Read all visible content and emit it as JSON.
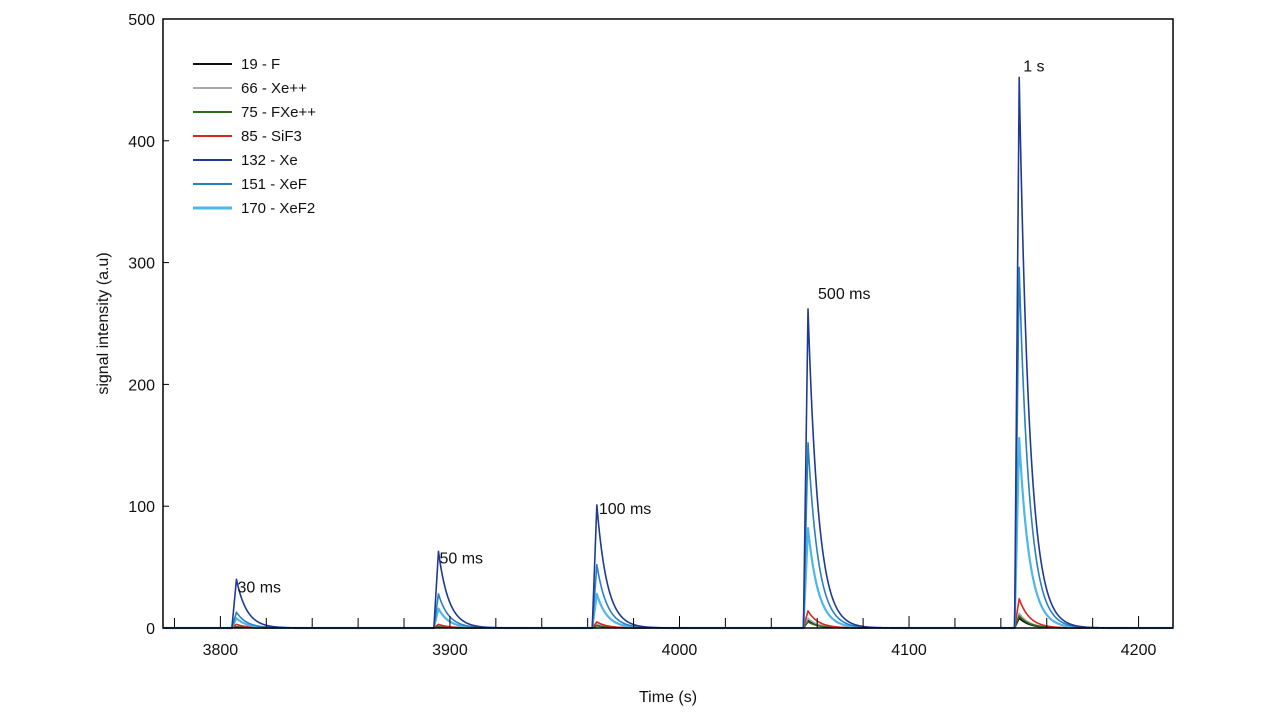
{
  "chart_data": {
    "type": "line",
    "title": "",
    "xlabel": "Time (s)",
    "ylabel": "signal intensity  (a.u)",
    "xlim": [
      3775,
      4215
    ],
    "ylim": [
      0,
      500
    ],
    "xticks": [
      3800,
      3900,
      4000,
      4100,
      4200
    ],
    "yticks": [
      0,
      100,
      200,
      300,
      400,
      500
    ],
    "grid": false,
    "legend_position": "top-left",
    "pulses": [
      {
        "start": 3805,
        "label": "30 ms"
      },
      {
        "start": 3893,
        "label": "50 ms"
      },
      {
        "start": 3962,
        "label": "100 ms"
      },
      {
        "start": 4054,
        "label": "500 ms"
      },
      {
        "start": 4146,
        "label": "1 s"
      }
    ],
    "series": [
      {
        "name": "19 - F",
        "color": "#111111",
        "peaks": [
          1,
          1,
          2,
          6,
          8
        ]
      },
      {
        "name": "66 - Xe++",
        "color": "#aaaaaa",
        "peaks": [
          1,
          2,
          3,
          8,
          12
        ]
      },
      {
        "name": "75 - FXe++",
        "color": "#2e6b1f",
        "peaks": [
          1,
          1,
          2,
          5,
          10
        ]
      },
      {
        "name": "85 - SiF3",
        "color": "#d42a1e",
        "peaks": [
          3,
          3,
          5,
          14,
          24
        ]
      },
      {
        "name": "132 - Xe",
        "color": "#1f3a93",
        "peaks": [
          40,
          63,
          101,
          262,
          452
        ]
      },
      {
        "name": "151 - XeF",
        "color": "#2a7fc1",
        "peaks": [
          13,
          28,
          52,
          152,
          296
        ]
      },
      {
        "name": "170 - XeF2",
        "color": "#4fb6e8",
        "peaks": [
          8,
          16,
          28,
          82,
          156
        ]
      }
    ]
  }
}
